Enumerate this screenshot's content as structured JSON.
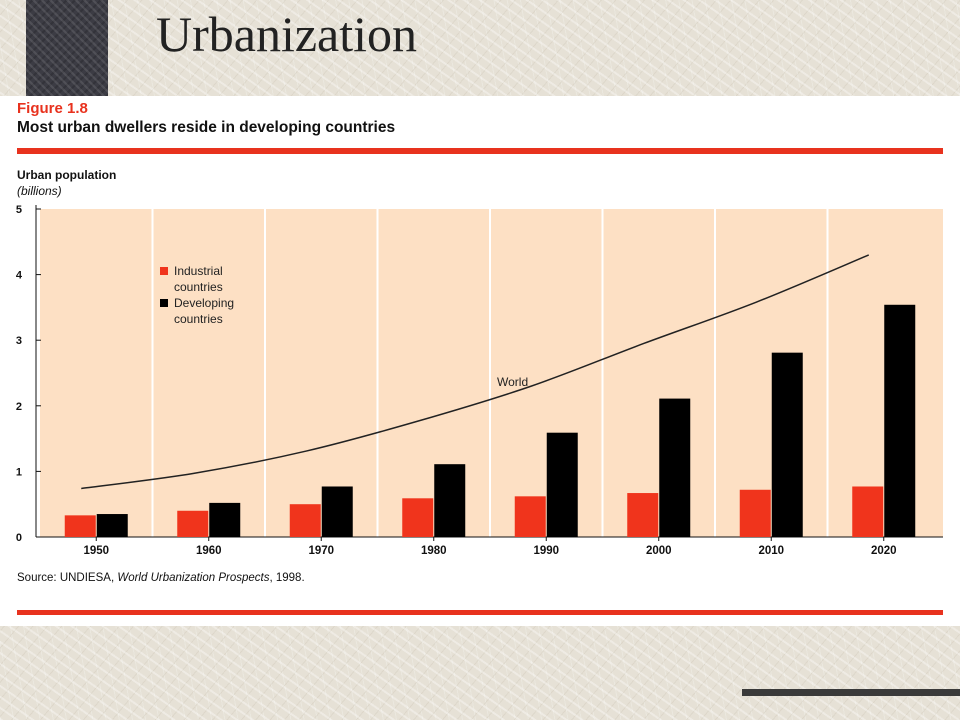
{
  "slide": {
    "title": "Urbanization"
  },
  "figure": {
    "number": "Figure 1.8",
    "title": "Most urban dwellers reside in developing countries",
    "source_prefix": "Source: UNDIESA, ",
    "source_title": "World Urbanization Prospects",
    "source_suffix": ", 1998."
  },
  "colors": {
    "industrial": "#f0341c",
    "developing": "#000000",
    "plot_background": "#fde0c4",
    "accent_rule": "#e8321e"
  },
  "chart_data": {
    "type": "bar",
    "ylabel": "Urban population",
    "yunit": "(billions)",
    "ylim": [
      0,
      5
    ],
    "yticks": [
      "0",
      "1",
      "2",
      "3",
      "4",
      "5"
    ],
    "categories": [
      "1950",
      "1960",
      "1970",
      "1980",
      "1990",
      "2000",
      "2010",
      "2020"
    ],
    "series": [
      {
        "name": "Industrial countries",
        "name_lines": [
          "Industrial",
          "countries"
        ],
        "values": [
          0.33,
          0.4,
          0.5,
          0.59,
          0.62,
          0.67,
          0.72,
          0.77
        ]
      },
      {
        "name": "Developing countries",
        "name_lines": [
          "Developing",
          "countries"
        ],
        "values": [
          0.35,
          0.52,
          0.77,
          1.11,
          1.59,
          2.11,
          2.81,
          3.54
        ]
      }
    ],
    "line_series": {
      "name": "World",
      "values": [
        0.74,
        0.97,
        1.31,
        1.77,
        2.3,
        2.95,
        3.58,
        4.3
      ]
    },
    "legend_position": "top-left",
    "grid": "vertical"
  }
}
